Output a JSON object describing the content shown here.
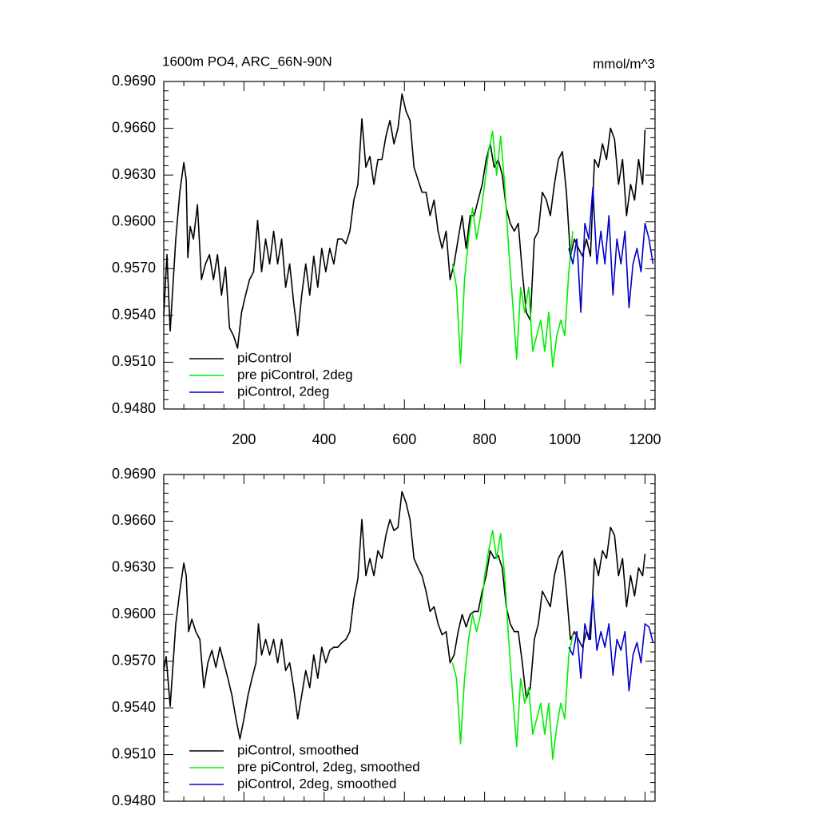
{
  "chart_data": [
    {
      "type": "line",
      "title": "1600m PO4, ARC_66N-90N",
      "units": "mmol/m^3",
      "xlim": [
        0,
        1225
      ],
      "ylim": [
        0.948,
        0.969
      ],
      "xticks": [
        200,
        400,
        600,
        800,
        1000,
        1200
      ],
      "show_xtick_labels": true,
      "yticks": [
        {
          "value": 0.948,
          "label": "0.9480"
        },
        {
          "value": 0.951,
          "label": "0.9510"
        },
        {
          "value": 0.954,
          "label": "0.9540"
        },
        {
          "value": 0.957,
          "label": "0.9570"
        },
        {
          "value": 0.96,
          "label": "0.9600"
        },
        {
          "value": 0.963,
          "label": "0.9630"
        },
        {
          "value": 0.966,
          "label": "0.9660"
        },
        {
          "value": 0.969,
          "label": "0.9690"
        }
      ],
      "legend": "lower left",
      "series": [
        {
          "name": "piControl",
          "color": "#000000",
          "x": [
            0,
            8,
            16,
            30,
            40,
            50,
            56,
            60,
            66,
            74,
            84,
            94,
            104,
            114,
            124,
            134,
            144,
            154,
            164,
            174,
            184,
            194,
            204,
            214,
            224,
            234,
            244,
            254,
            264,
            274,
            284,
            294,
            304,
            314,
            324,
            334,
            344,
            354,
            364,
            374,
            384,
            394,
            404,
            414,
            424,
            434,
            444,
            454,
            464,
            474,
            484,
            494,
            504,
            514,
            524,
            534,
            544,
            554,
            564,
            574,
            584,
            594,
            604,
            614,
            624,
            634,
            644,
            654,
            664,
            674,
            684,
            694,
            704,
            714,
            724,
            734,
            744,
            754,
            764,
            774,
            784,
            794,
            804,
            814,
            824,
            834,
            844,
            854,
            864,
            874,
            884,
            894,
            904,
            914,
            924,
            934,
            944,
            954,
            964,
            974,
            984,
            994,
            1004,
            1014,
            1024,
            1034,
            1044,
            1054,
            1064,
            1074,
            1084,
            1094,
            1104,
            1114,
            1124,
            1134,
            1144,
            1154,
            1164,
            1174,
            1184,
            1194,
            1200
          ],
          "values": [
            0.954,
            0.9579,
            0.953,
            0.9589,
            0.9619,
            0.9638,
            0.9627,
            0.9577,
            0.9597,
            0.9589,
            0.9611,
            0.9563,
            0.9573,
            0.9579,
            0.9563,
            0.9579,
            0.9553,
            0.9571,
            0.9532,
            0.9527,
            0.9519,
            0.9542,
            0.9553,
            0.9563,
            0.9568,
            0.9601,
            0.9568,
            0.9589,
            0.9573,
            0.9594,
            0.9573,
            0.9589,
            0.9558,
            0.9573,
            0.9548,
            0.9527,
            0.9553,
            0.9573,
            0.9553,
            0.9578,
            0.9558,
            0.9583,
            0.9568,
            0.9583,
            0.9573,
            0.9589,
            0.9589,
            0.9586,
            0.9594,
            0.9614,
            0.9624,
            0.9666,
            0.9635,
            0.9642,
            0.9624,
            0.964,
            0.964,
            0.9655,
            0.9665,
            0.965,
            0.966,
            0.9682,
            0.9671,
            0.9665,
            0.9635,
            0.9627,
            0.9619,
            0.9619,
            0.9604,
            0.9614,
            0.9594,
            0.9583,
            0.9594,
            0.9563,
            0.9573,
            0.9589,
            0.9604,
            0.9583,
            0.9604,
            0.9604,
            0.9614,
            0.9624,
            0.964,
            0.965,
            0.9635,
            0.964,
            0.963,
            0.9609,
            0.9599,
            0.9594,
            0.9599,
            0.9568,
            0.9542,
            0.9537,
            0.9589,
            0.9594,
            0.9619,
            0.9614,
            0.9604,
            0.9624,
            0.964,
            0.9645,
            0.9619,
            0.9578,
            0.9589,
            0.9583,
            0.9578,
            0.9589,
            0.9578,
            0.964,
            0.9635,
            0.965,
            0.964,
            0.966,
            0.9653,
            0.9624,
            0.964,
            0.9604,
            0.9624,
            0.9614,
            0.964,
            0.9624,
            0.9659
          ]
        },
        {
          "name": "pre piControl, 2deg",
          "color": "#00ee00",
          "x": [
            720,
            730,
            740,
            750,
            760,
            770,
            780,
            790,
            800,
            810,
            820,
            830,
            840,
            850,
            860,
            870,
            880,
            890,
            900,
            910,
            920,
            930,
            940,
            950,
            960,
            970,
            980,
            990,
            1000,
            1010,
            1020
          ],
          "values": [
            0.9573,
            0.9558,
            0.9509,
            0.9563,
            0.9589,
            0.9609,
            0.9589,
            0.9604,
            0.9624,
            0.9645,
            0.9658,
            0.963,
            0.9655,
            0.9624,
            0.9583,
            0.9548,
            0.9512,
            0.9558,
            0.9542,
            0.9558,
            0.9517,
            0.9527,
            0.9537,
            0.9517,
            0.9542,
            0.9507,
            0.9527,
            0.9537,
            0.9527,
            0.9568,
            0.9594
          ]
        },
        {
          "name": "piControl, 2deg",
          "color": "#0000cc",
          "x": [
            1010,
            1020,
            1030,
            1040,
            1050,
            1060,
            1070,
            1080,
            1090,
            1100,
            1110,
            1120,
            1130,
            1140,
            1150,
            1160,
            1170,
            1180,
            1190,
            1200,
            1210,
            1220
          ],
          "values": [
            0.9583,
            0.9573,
            0.9589,
            0.9542,
            0.9599,
            0.9589,
            0.9622,
            0.9573,
            0.9594,
            0.9573,
            0.9604,
            0.9553,
            0.9589,
            0.9573,
            0.9594,
            0.9545,
            0.9573,
            0.9583,
            0.9568,
            0.9599,
            0.9589,
            0.9573
          ]
        }
      ]
    },
    {
      "type": "line",
      "xlim": [
        0,
        1225
      ],
      "ylim": [
        0.948,
        0.969
      ],
      "xticks": [
        200,
        400,
        600,
        800,
        1000,
        1200
      ],
      "show_xtick_labels": false,
      "yticks": [
        {
          "value": 0.948,
          "label": "0.9480"
        },
        {
          "value": 0.951,
          "label": "0.9510"
        },
        {
          "value": 0.954,
          "label": "0.9540"
        },
        {
          "value": 0.957,
          "label": "0.9570"
        },
        {
          "value": 0.96,
          "label": "0.9600"
        },
        {
          "value": 0.963,
          "label": "0.9630"
        },
        {
          "value": 0.966,
          "label": "0.9660"
        },
        {
          "value": 0.969,
          "label": "0.9690"
        }
      ],
      "legend": "lower left",
      "series": [
        {
          "name": "piControl, smoothed",
          "color": "#000000",
          "x": [
            0,
            6,
            16,
            30,
            40,
            50,
            56,
            62,
            70,
            80,
            90,
            100,
            110,
            120,
            130,
            140,
            150,
            160,
            170,
            180,
            190,
            200,
            210,
            220,
            230,
            236,
            244,
            254,
            264,
            274,
            284,
            294,
            304,
            314,
            324,
            334,
            344,
            354,
            364,
            374,
            384,
            394,
            404,
            414,
            424,
            434,
            444,
            454,
            464,
            474,
            484,
            494,
            504,
            514,
            524,
            534,
            544,
            554,
            564,
            574,
            584,
            594,
            604,
            614,
            624,
            634,
            644,
            654,
            664,
            674,
            684,
            694,
            704,
            714,
            724,
            734,
            744,
            754,
            764,
            774,
            784,
            794,
            804,
            814,
            824,
            834,
            844,
            854,
            864,
            874,
            884,
            894,
            904,
            914,
            924,
            934,
            944,
            954,
            964,
            974,
            984,
            994,
            1004,
            1014,
            1024,
            1034,
            1044,
            1054,
            1064,
            1074,
            1084,
            1094,
            1104,
            1114,
            1124,
            1134,
            1144,
            1154,
            1164,
            1174,
            1184,
            1194,
            1200
          ],
          "values": [
            0.9564,
            0.9573,
            0.9541,
            0.9594,
            0.9615,
            0.9633,
            0.9625,
            0.9589,
            0.9597,
            0.9589,
            0.9584,
            0.9553,
            0.9569,
            0.9577,
            0.9566,
            0.9579,
            0.9569,
            0.9559,
            0.9548,
            0.9533,
            0.952,
            0.9533,
            0.9548,
            0.9559,
            0.9569,
            0.9594,
            0.9574,
            0.9584,
            0.9574,
            0.9584,
            0.9569,
            0.9584,
            0.9564,
            0.9569,
            0.9553,
            0.9533,
            0.9548,
            0.9564,
            0.9553,
            0.9574,
            0.9559,
            0.9579,
            0.9569,
            0.9577,
            0.9579,
            0.9579,
            0.9582,
            0.9584,
            0.9589,
            0.961,
            0.9623,
            0.9661,
            0.9625,
            0.9636,
            0.9625,
            0.9641,
            0.9636,
            0.9651,
            0.9661,
            0.9654,
            0.9656,
            0.9679,
            0.9672,
            0.9661,
            0.9636,
            0.963,
            0.9625,
            0.9615,
            0.9602,
            0.9605,
            0.9594,
            0.9587,
            0.9589,
            0.9569,
            0.9574,
            0.9589,
            0.96,
            0.9592,
            0.96,
            0.9602,
            0.9602,
            0.9615,
            0.9625,
            0.9641,
            0.9636,
            0.9638,
            0.963,
            0.9605,
            0.9594,
            0.9589,
            0.9589,
            0.9569,
            0.9546,
            0.9553,
            0.9584,
            0.9594,
            0.9615,
            0.961,
            0.9605,
            0.9625,
            0.9636,
            0.9641,
            0.9615,
            0.9584,
            0.9589,
            0.9584,
            0.9579,
            0.9589,
            0.9584,
            0.9636,
            0.9625,
            0.9641,
            0.9636,
            0.9656,
            0.9651,
            0.9625,
            0.9636,
            0.9605,
            0.9625,
            0.9612,
            0.963,
            0.9625,
            0.9639
          ]
        },
        {
          "name": "pre piControl, 2deg, smoothed",
          "color": "#00ee00",
          "x": [
            720,
            730,
            740,
            750,
            760,
            770,
            780,
            790,
            800,
            810,
            820,
            830,
            840,
            850,
            860,
            870,
            880,
            890,
            900,
            910,
            920,
            930,
            940,
            950,
            960,
            970,
            980,
            990,
            1000,
            1010,
            1020
          ],
          "values": [
            0.9569,
            0.9559,
            0.9517,
            0.9559,
            0.9584,
            0.96,
            0.9589,
            0.96,
            0.9625,
            0.9641,
            0.9654,
            0.9636,
            0.9652,
            0.9625,
            0.9584,
            0.9548,
            0.9515,
            0.9559,
            0.9543,
            0.9553,
            0.9523,
            0.9533,
            0.9543,
            0.9523,
            0.9543,
            0.9507,
            0.9528,
            0.9543,
            0.9533,
            0.9574,
            0.9587
          ]
        },
        {
          "name": "piControl, 2deg, smoothed",
          "color": "#0000cc",
          "x": [
            1010,
            1020,
            1030,
            1040,
            1050,
            1060,
            1070,
            1080,
            1090,
            1100,
            1110,
            1120,
            1130,
            1140,
            1150,
            1160,
            1170,
            1180,
            1190,
            1200,
            1210,
            1220
          ],
          "values": [
            0.9579,
            0.9574,
            0.9589,
            0.9559,
            0.9594,
            0.9584,
            0.9612,
            0.9577,
            0.9589,
            0.9579,
            0.9594,
            0.9561,
            0.9584,
            0.9577,
            0.9589,
            0.9551,
            0.9574,
            0.9582,
            0.9569,
            0.9594,
            0.9592,
            0.9582
          ]
        }
      ]
    }
  ]
}
